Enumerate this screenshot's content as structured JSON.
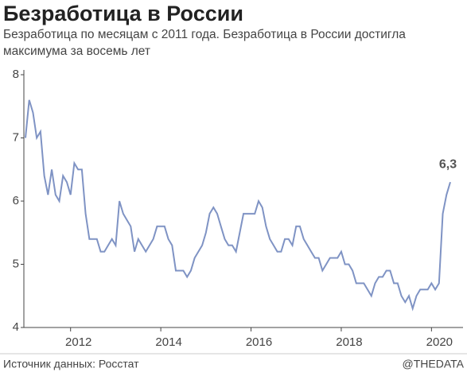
{
  "chart_data": {
    "type": "line",
    "title": "Безработица в России",
    "subtitle": [
      "Безработица по месяцам с 2011 года. Безработица в России достигла",
      "максимума за восемь лет"
    ],
    "source": "Источник данных: Росстат",
    "credit": "@THEDATA",
    "x": [
      2011,
      2011.083,
      2011.167,
      2011.25,
      2011.333,
      2011.417,
      2011.5,
      2011.583,
      2011.667,
      2011.75,
      2011.833,
      2011.917,
      2012,
      2012.083,
      2012.167,
      2012.25,
      2012.333,
      2012.417,
      2012.5,
      2012.583,
      2012.667,
      2012.75,
      2012.833,
      2012.917,
      2013,
      2013.083,
      2013.167,
      2013.25,
      2013.333,
      2013.417,
      2013.5,
      2013.583,
      2013.667,
      2013.75,
      2013.833,
      2013.917,
      2014,
      2014.083,
      2014.167,
      2014.25,
      2014.333,
      2014.417,
      2014.5,
      2014.583,
      2014.667,
      2014.75,
      2014.833,
      2014.917,
      2015,
      2015.083,
      2015.167,
      2015.25,
      2015.333,
      2015.417,
      2015.5,
      2015.583,
      2015.667,
      2015.75,
      2015.833,
      2015.917,
      2016,
      2016.083,
      2016.167,
      2016.25,
      2016.333,
      2016.417,
      2016.5,
      2016.583,
      2016.667,
      2016.75,
      2016.833,
      2016.917,
      2017,
      2017.083,
      2017.167,
      2017.25,
      2017.333,
      2017.417,
      2017.5,
      2017.583,
      2017.667,
      2017.75,
      2017.833,
      2017.917,
      2018,
      2018.083,
      2018.167,
      2018.25,
      2018.333,
      2018.417,
      2018.5,
      2018.583,
      2018.667,
      2018.75,
      2018.833,
      2018.917,
      2019,
      2019.083,
      2019.167,
      2019.25,
      2019.333,
      2019.417,
      2019.5,
      2019.583,
      2019.667,
      2019.75,
      2019.833,
      2019.917,
      2020,
      2020.083,
      2020.167,
      2020.25,
      2020.333,
      2020.417
    ],
    "series": [
      {
        "color": "#7f93c4",
        "values": [
          7.0,
          7.6,
          7.4,
          7.0,
          7.1,
          6.4,
          6.1,
          6.5,
          6.1,
          6.0,
          6.4,
          6.3,
          6.1,
          6.6,
          6.5,
          6.5,
          5.8,
          5.4,
          5.4,
          5.4,
          5.2,
          5.2,
          5.3,
          5.4,
          5.3,
          6.0,
          5.8,
          5.7,
          5.6,
          5.2,
          5.4,
          5.3,
          5.2,
          5.3,
          5.4,
          5.6,
          5.6,
          5.6,
          5.4,
          5.3,
          4.9,
          4.9,
          4.9,
          4.8,
          4.9,
          5.1,
          5.2,
          5.3,
          5.5,
          5.8,
          5.9,
          5.8,
          5.6,
          5.4,
          5.3,
          5.3,
          5.2,
          5.5,
          5.8,
          5.8,
          5.8,
          5.8,
          6.0,
          5.9,
          5.6,
          5.4,
          5.3,
          5.2,
          5.2,
          5.4,
          5.4,
          5.3,
          5.6,
          5.6,
          5.4,
          5.3,
          5.2,
          5.1,
          5.1,
          4.9,
          5.0,
          5.1,
          5.1,
          5.1,
          5.2,
          5.0,
          5.0,
          4.9,
          4.7,
          4.7,
          4.7,
          4.6,
          4.5,
          4.7,
          4.8,
          4.8,
          4.9,
          4.9,
          4.7,
          4.7,
          4.5,
          4.4,
          4.5,
          4.3,
          4.5,
          4.6,
          4.6,
          4.6,
          4.7,
          4.6,
          4.7,
          5.8,
          6.1,
          6.3
        ],
        "value_labels": [
          null,
          null,
          null,
          null,
          null,
          null,
          null,
          null,
          null,
          null,
          null,
          null,
          null,
          null,
          null,
          null,
          null,
          null,
          null,
          null,
          null,
          null,
          null,
          null,
          null,
          null,
          null,
          null,
          null,
          null,
          null,
          null,
          null,
          null,
          null,
          null,
          null,
          null,
          null,
          null,
          null,
          null,
          null,
          null,
          null,
          null,
          null,
          null,
          null,
          null,
          null,
          null,
          null,
          null,
          null,
          null,
          null,
          null,
          null,
          null,
          null,
          null,
          null,
          null,
          null,
          null,
          null,
          null,
          null,
          null,
          null,
          null,
          null,
          null,
          null,
          null,
          null,
          null,
          null,
          null,
          null,
          null,
          null,
          null,
          null,
          null,
          null,
          null,
          null,
          null,
          null,
          null,
          null,
          null,
          null,
          null,
          null,
          null,
          null,
          null,
          null,
          null,
          null,
          null,
          null,
          null,
          null,
          null,
          null,
          null,
          null,
          null,
          null,
          "6,3"
        ]
      }
    ],
    "xlim": [
      2011,
      2020.417
    ],
    "xticks": [
      2012,
      2014,
      2016,
      2018,
      2020
    ],
    "ylim": [
      4,
      8
    ],
    "yticks": [
      4,
      5,
      6,
      7,
      8
    ]
  }
}
